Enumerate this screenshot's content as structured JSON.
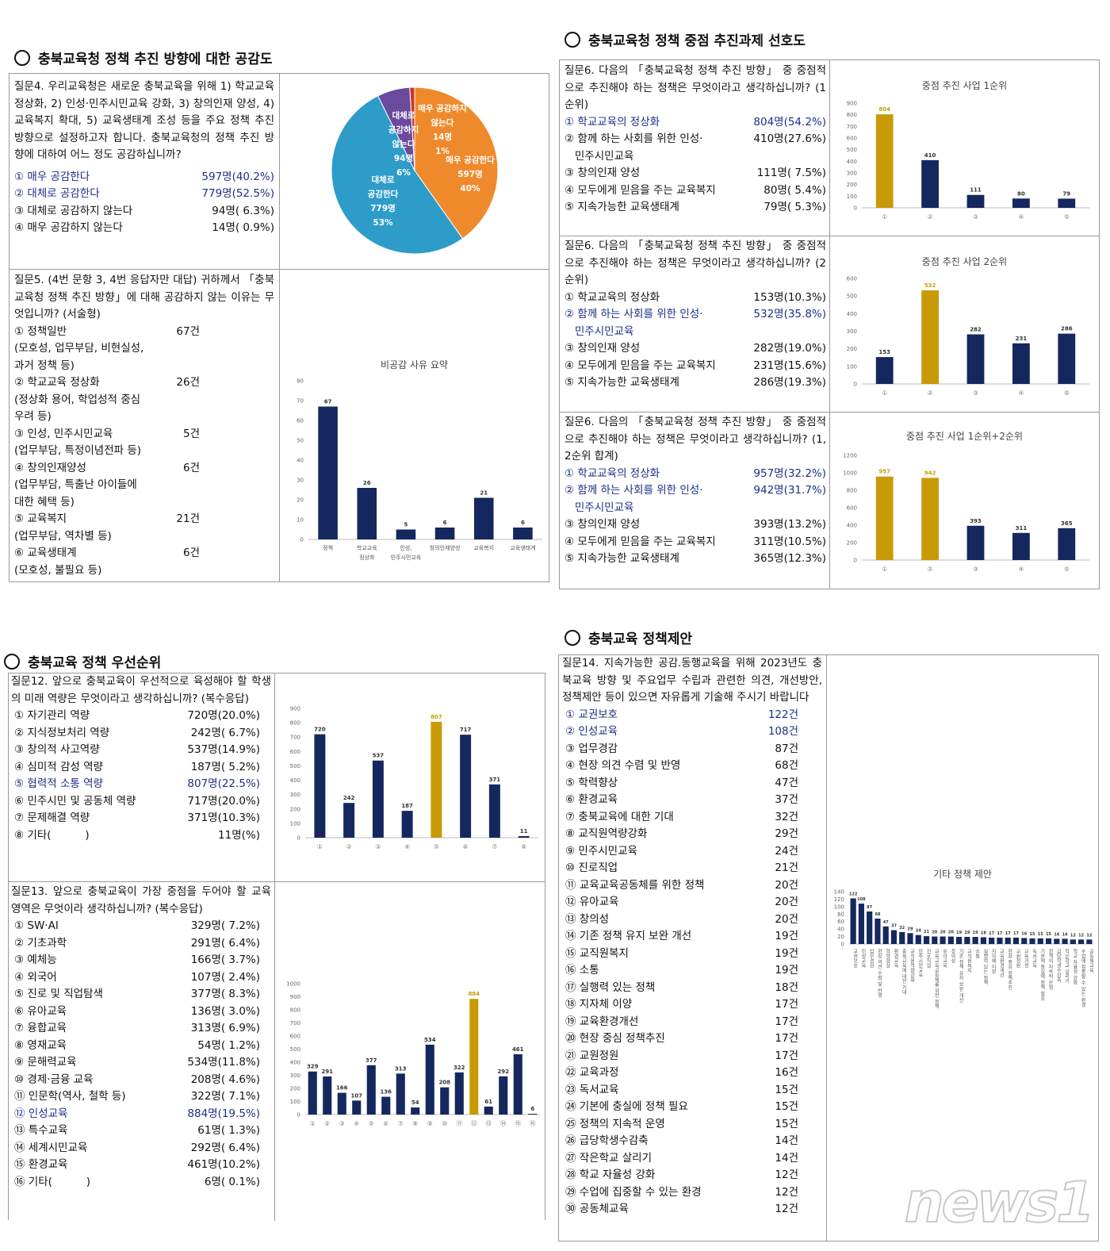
{
  "s1": {
    "title": "충북교육청 정책 추진 방향에 대한 공감도",
    "q4": "질문4. 우리교육청은 새로운 충북교육을 위해 1) 학교교육 정상화, 2) 인성·민주시민교육 강화, 3) 창의인재 양성, 4) 교육복지 확대, 5) 교육생태계 조성 등을 주요 정책 추진 방향으로 설정하고자 합니다. 충북교육청의 정책 추진 방향에 대하여 어느 정도 공감하십니까?",
    "q4_options": [
      {
        "label": "① 매우 공감한다",
        "value": "597명(40.2%)",
        "hl": true
      },
      {
        "label": "② 대체로 공감한다",
        "value": "779명(52.5%)",
        "hl": true
      },
      {
        "label": "③ 대체로 공감하지 않는다",
        "value": "94명( 6.3%)",
        "hl": false
      },
      {
        "label": "④ 매우 공감하지 않는다",
        "value": "14명( 0.9%)",
        "hl": false
      }
    ],
    "pie": {
      "slices": [
        {
          "label": "매우 공감한다",
          "count": "597명",
          "pct": "40%",
          "value": 597,
          "color": "#ef8a2c"
        },
        {
          "label": "대체로 공감한다",
          "count": "779명",
          "pct": "53%",
          "value": 779,
          "color": "#2e9cc9"
        },
        {
          "label": "대체로 공감하지 않는다",
          "count": "94명",
          "pct": "6%",
          "value": 94,
          "color": "#6a4a9c"
        },
        {
          "label": "매우 공감하지 않는다",
          "count": "14명",
          "pct": "1%",
          "value": 14,
          "color": "#c9382b"
        }
      ],
      "l_strongly_disagree": [
        "매우 공감하지",
        "않는다",
        "14명",
        "1%"
      ],
      "l_strongly_agree": [
        "매우 공감한다",
        "597명",
        "40%"
      ],
      "l_disagree": [
        "대체로",
        "공감하지",
        "않는다",
        "94명",
        "6%"
      ],
      "l_agree": [
        "대체로",
        "공감한다",
        "779명",
        "53%"
      ]
    },
    "q5": "질문5. (4번 문항 3, 4번 응답자만 대답) 귀하께서 「충북교육청 정책 추진 방향」에 대해 공감하지 않는 이유는 무엇입니까? (서술형)",
    "q5_items": [
      {
        "label": "① 정책일반",
        "value": "67건",
        "sub": [
          "(모호성, 업무부담, 비현실성,",
          "과거 정책 등)"
        ]
      },
      {
        "label": "② 학교교육 정상화",
        "value": "26건",
        "sub": [
          "(정상화 용어, 학업성적 중심",
          "우려 등)"
        ]
      },
      {
        "label": "③ 인성, 민주시민교육",
        "value": "5건",
        "sub": [
          "(업무부담, 특정이념전파 등)"
        ]
      },
      {
        "label": "④ 창의인재양성",
        "value": "6건",
        "sub": [
          "(업무부담, 특출난 아이들에",
          "대한 혜택 등)"
        ]
      },
      {
        "label": "⑤ 교육복지",
        "value": "21건",
        "sub": [
          "(업무부담, 역차별 등)"
        ]
      },
      {
        "label": "⑥ 교육생태계",
        "value": "6건",
        "sub": [
          "(모호성, 불필요 등)"
        ]
      }
    ]
  },
  "s2": {
    "title": "충북교육청 정책 중점 추진과제 선호도",
    "blocks": [
      {
        "q": "질문6. 다음의 「충북교육청 정책 추진 방향」 중 중점적으로 추진해야 하는 정책은 무엇이라고 생각하십니까? (1순위)",
        "options": [
          {
            "label": "① 학교교육의 정상화",
            "value": "804명(54.2%)",
            "hl": true
          },
          {
            "label": "② 함께 하는 사회를 위한 인성·",
            "value": "410명(27.6%)",
            "hl": false
          },
          {
            "label": "   민주시민교육",
            "value": "",
            "hl": false
          },
          {
            "label": "③ 창의인재 양성",
            "value": "111명( 7.5%)",
            "hl": false
          },
          {
            "label": "④ 모두에게 믿음을 주는 교육복지",
            "value": "80명( 5.4%)",
            "hl": false
          },
          {
            "label": "⑤ 지속가능한 교육생태계",
            "value": "79명( 5.3%)",
            "hl": false
          }
        ]
      },
      {
        "q": "질문6. 다음의 「충북교육청 정책 추진 방향」 중 중점적으로 추진해야 하는 정책은 무엇이라고 생각하십니까? (2순위)",
        "options": [
          {
            "label": "① 학교교육의 정상화",
            "value": "153명(10.3%)",
            "hl": false
          },
          {
            "label": "② 함께 하는 사회를 위한 인성·",
            "value": "532명(35.8%)",
            "hl": true
          },
          {
            "label": "   민주시민교육",
            "value": "",
            "hl": true
          },
          {
            "label": "③ 창의인재 양성",
            "value": "282명(19.0%)",
            "hl": false
          },
          {
            "label": "④ 모두에게 믿음을 주는 교육복지",
            "value": "231명(15.6%)",
            "hl": false
          },
          {
            "label": "⑤ 지속가능한 교육생태계",
            "value": "286명(19.3%)",
            "hl": false
          }
        ]
      },
      {
        "q": "질문6. 다음의 「충북교육청 정책 추진 방향」 중 중점적으로 추진해야 하는 정책은 무엇이라고 생각하십니까? (1, 2순위 합계)",
        "options": [
          {
            "label": "① 학교교육의 정상화",
            "value": "957명(32.2%)",
            "hl": true
          },
          {
            "label": "② 함께 하는 사회를 위한 인성·",
            "value": "942명(31.7%)",
            "hl": true
          },
          {
            "label": "   민주시민교육",
            "value": "",
            "hl": true
          },
          {
            "label": "③ 창의인재 양성",
            "value": "393명(13.2%)",
            "hl": false
          },
          {
            "label": "④ 모두에게 믿음을 주는 교육복지",
            "value": "311명(10.5%)",
            "hl": false
          },
          {
            "label": "⑤ 지속가능한 교육생태계",
            "value": "365명(12.3%)",
            "hl": false
          }
        ]
      }
    ]
  },
  "s3": {
    "title": "충북교육 정책 우선순위",
    "q12": "질문12. 앞으로 충북교육이 우선적으로 육성해야 할 학생의 미래 역량은 무엇이라고 생각하십니까? (복수응답)",
    "q12_options": [
      {
        "label": "① 자기관리 역량",
        "value": "720명(20.0%)",
        "hl": false
      },
      {
        "label": "② 지식정보처리 역량",
        "value": "242명( 6.7%)",
        "hl": false
      },
      {
        "label": "③ 창의적 사고역량",
        "value": "537명(14.9%)",
        "hl": false
      },
      {
        "label": "④ 심미적 감성 역량",
        "value": "187명( 5.2%)",
        "hl": false
      },
      {
        "label": "⑤ 협력적 소통 역량",
        "value": "807명(22.5%)",
        "hl": true
      },
      {
        "label": "⑥ 민주시민 및 공동체 역량",
        "value": "717명(20.0%)",
        "hl": false
      },
      {
        "label": "⑦ 문제해결 역량",
        "value": "371명(10.3%)",
        "hl": false
      },
      {
        "label": "⑧ 기타(          )",
        "value": "11명(%)",
        "hl": false
      }
    ],
    "q13": "질문13. 앞으로 충북교육이 가장 중점을 두어야 할 교육 영역은 무엇이라 생각하십니까? (복수응답)",
    "q13_options": [
      {
        "label": "① SW·AI",
        "value": "329명( 7.2%)",
        "hl": false
      },
      {
        "label": "② 기초과학",
        "value": "291명( 6.4%)",
        "hl": false
      },
      {
        "label": "③ 예체능",
        "value": "166명( 3.7%)",
        "hl": false
      },
      {
        "label": "④ 외국어",
        "value": "107명( 2.4%)",
        "hl": false
      },
      {
        "label": "⑤ 진로 및 직업탐색",
        "value": "377명( 8.3%)",
        "hl": false
      },
      {
        "label": "⑥ 유아교육",
        "value": "136명( 3.0%)",
        "hl": false
      },
      {
        "label": "⑦ 융합교육",
        "value": "313명( 6.9%)",
        "hl": false
      },
      {
        "label": "⑧ 영재교육",
        "value": "54명( 1.2%)",
        "hl": false
      },
      {
        "label": "⑨ 문해력교육",
        "value": "534명(11.8%)",
        "hl": false
      },
      {
        "label": "⑩ 경제·금융 교육",
        "value": "208명( 4.6%)",
        "hl": false
      },
      {
        "label": "⑪ 인문학(역사, 철학 등)",
        "value": "322명( 7.1%)",
        "hl": false
      },
      {
        "label": "⑫ 인성교육",
        "value": "884명(19.5%)",
        "hl": true
      },
      {
        "label": "⑬ 특수교육",
        "value": "61명( 1.3%)",
        "hl": false
      },
      {
        "label": "⑭ 세계시민교육",
        "value": "292명( 6.4%)",
        "hl": false
      },
      {
        "label": "⑮ 환경교육",
        "value": "461명(10.2%)",
        "hl": false
      },
      {
        "label": "⑯ 기타(          )",
        "value": "6명( 0.1%)",
        "hl": false
      }
    ]
  },
  "s4": {
    "title": "충북교육 정책제안",
    "q14": "질문14. 지속가능한 공감.동행교육을 위해 2023년도 충북교육 방향 및 주요업무 수립과 관련한 의견, 개선방안, 정책제안 등이 있으면 자유롭게 기술해 주시기 바랍니다",
    "q14_options": [
      {
        "label": "① 교권보호",
        "value": "122건",
        "hl": true
      },
      {
        "label": "② 인성교육",
        "value": "108건",
        "hl": true
      },
      {
        "label": "③ 업무경감",
        "value": "87건",
        "hl": false
      },
      {
        "label": "④ 현장 의견 수렴 및 반영",
        "value": "68건",
        "hl": false
      },
      {
        "label": "⑤ 학력향상",
        "value": "47건",
        "hl": false
      },
      {
        "label": "⑥ 환경교육",
        "value": "37건",
        "hl": false
      },
      {
        "label": "⑦ 충북교육에 대한 기대",
        "value": "32건",
        "hl": false
      },
      {
        "label": "⑧ 교직원역량강화",
        "value": "29건",
        "hl": false
      },
      {
        "label": "⑨ 민주시민교육",
        "value": "24건",
        "hl": false
      },
      {
        "label": "⑩ 진로직업",
        "value": "21건",
        "hl": false
      },
      {
        "label": "⑪ 교육교육공동체를 위한 정책",
        "value": "20건",
        "hl": false
      },
      {
        "label": "⑫ 유아교육",
        "value": "20건",
        "hl": false
      },
      {
        "label": "⑬ 창의성",
        "value": "20건",
        "hl": false
      },
      {
        "label": "⑭ 기존 정책 유지 보완 개선",
        "value": "19건",
        "hl": false
      },
      {
        "label": "⑮ 교직원복지",
        "value": "19건",
        "hl": false
      },
      {
        "label": "⑯ 소통",
        "value": "19건",
        "hl": false
      },
      {
        "label": "⑰ 실행력 있는 정책",
        "value": "18건",
        "hl": false
      },
      {
        "label": "⑱ 지자체 이양",
        "value": "17건",
        "hl": false
      },
      {
        "label": "⑲ 교육환경개선",
        "value": "17건",
        "hl": false
      },
      {
        "label": "⑳ 현장 중심 정책추진",
        "value": "17건",
        "hl": false
      },
      {
        "label": "㉑ 교원정원",
        "value": "17건",
        "hl": false
      },
      {
        "label": "㉒ 교육과정",
        "value": "16건",
        "hl": false
      },
      {
        "label": "㉓ 독서교육",
        "value": "15건",
        "hl": false
      },
      {
        "label": "㉔ 기본에 충실에 정책 필요",
        "value": "15건",
        "hl": false
      },
      {
        "label": "㉕ 정책의 지속적 운영",
        "value": "15건",
        "hl": false
      },
      {
        "label": "㉖ 급당학생수감축",
        "value": "14건",
        "hl": false
      },
      {
        "label": "㉗ 작은학교 살리기",
        "value": "14건",
        "hl": false
      },
      {
        "label": "㉘ 학교 자율성 강화",
        "value": "12건",
        "hl": false
      },
      {
        "label": "㉙ 수업에 집중할 수 있는 환경",
        "value": "12건",
        "hl": false
      },
      {
        "label": "㉚ 공동체교육",
        "value": "12건",
        "hl": false
      }
    ]
  },
  "colors": {
    "navy": "#14285f",
    "gold": "#c99a07",
    "highlight_text": "#1b2f86"
  },
  "watermark": "news1",
  "chart_data": [
    {
      "id": "c_pie",
      "type": "pie",
      "categories": [
        "매우 공감한다",
        "대체로 공감한다",
        "대체로 공감하지 않는다",
        "매우 공감하지 않는다"
      ],
      "values": [
        597,
        779,
        94,
        14
      ]
    },
    {
      "id": "c_q5",
      "type": "bar",
      "title": "비공감 사유 요약",
      "categories": [
        "정책",
        "학교교육 정상화",
        "인성, 민주시민교육",
        "창의인재양성",
        "교육복지",
        "교육생태계"
      ],
      "values": [
        67,
        26,
        5,
        6,
        21,
        6
      ],
      "ylim": [
        0,
        80
      ],
      "yticks": [
        0,
        10,
        20,
        30,
        40,
        50,
        60,
        70,
        80
      ],
      "highlight": []
    },
    {
      "id": "c_r1",
      "type": "bar",
      "title": "중점 추진 사업 1순위",
      "categories": [
        "①",
        "②",
        "③",
        "④",
        "⑤"
      ],
      "values": [
        804,
        410,
        111,
        80,
        79
      ],
      "ylim": [
        0,
        900
      ],
      "yticks": [
        0,
        100,
        200,
        300,
        400,
        500,
        600,
        700,
        800,
        900
      ],
      "highlight": [
        0
      ]
    },
    {
      "id": "c_r2",
      "type": "bar",
      "title": "중점 추진 사업 2순위",
      "categories": [
        "①",
        "②",
        "③",
        "④",
        "⑤"
      ],
      "values": [
        153,
        532,
        282,
        231,
        286
      ],
      "ylim": [
        0,
        600
      ],
      "yticks": [
        0,
        100,
        200,
        300,
        400,
        500,
        600
      ],
      "highlight": [
        1
      ]
    },
    {
      "id": "c_r12",
      "type": "bar",
      "title": "중점 추진 사업 1순위+2순위",
      "categories": [
        "①",
        "②",
        "③",
        "④",
        "⑤"
      ],
      "values": [
        957,
        942,
        393,
        311,
        365
      ],
      "ylim": [
        0,
        1200
      ],
      "yticks": [
        0,
        200,
        400,
        600,
        800,
        1000,
        1200
      ],
      "highlight": [
        0,
        1
      ]
    },
    {
      "id": "c_q12",
      "type": "bar",
      "title": "",
      "categories": [
        "①",
        "②",
        "③",
        "④",
        "⑤",
        "⑥",
        "⑦",
        "⑧"
      ],
      "values": [
        720,
        242,
        537,
        187,
        807,
        717,
        371,
        11
      ],
      "ylim": [
        0,
        900
      ],
      "yticks": [
        0,
        100,
        200,
        300,
        400,
        500,
        600,
        700,
        800,
        900
      ],
      "highlight": [
        4
      ]
    },
    {
      "id": "c_q13",
      "type": "bar",
      "title": "",
      "categories": [
        "①",
        "②",
        "③",
        "④",
        "⑤",
        "⑥",
        "⑦",
        "⑧",
        "⑨",
        "⑩",
        "⑪",
        "⑫",
        "⑬",
        "⑭",
        "⑮",
        "⑯"
      ],
      "values": [
        329,
        291,
        166,
        107,
        377,
        136,
        313,
        54,
        534,
        208,
        322,
        884,
        61,
        292,
        461,
        6
      ],
      "ylim": [
        0,
        1000
      ],
      "yticks": [
        0,
        100,
        200,
        300,
        400,
        500,
        600,
        700,
        800,
        900,
        1000
      ],
      "highlight": [
        11
      ]
    },
    {
      "id": "c_q14",
      "type": "bar",
      "title": "기타 정책 제안",
      "categories": [
        "교권보호",
        "인성교육",
        "업무경감",
        "현장 의견 수렴 및 반영",
        "학력향상",
        "환경교육",
        "충북교육에 대한 기대",
        "교직원역량강화",
        "민주시민교육",
        "진로직업",
        "교육교육공동체를 위한 정책",
        "유아교육",
        "창의성",
        "기존 정책 유지 보완 개선",
        "교직원복지",
        "소통",
        "실행력 있는 정책",
        "지자체 이양",
        "교육환경개선",
        "현장 중심 정책추진",
        "교원정원",
        "교육과정",
        "독서교육",
        "기본에 충실에 정책 필요",
        "정책의 지속적 운영",
        "급당학생수감축",
        "작은학교 살리기",
        "학교 자율성 강화",
        "수업에 집중할 수 있는 환경",
        "공동체교육"
      ],
      "values": [
        122,
        108,
        87,
        68,
        47,
        37,
        32,
        29,
        24,
        21,
        20,
        20,
        20,
        19,
        19,
        19,
        18,
        17,
        17,
        17,
        17,
        16,
        15,
        15,
        15,
        14,
        14,
        12,
        12,
        12
      ],
      "ylim": [
        0,
        140
      ],
      "yticks": [
        0,
        20,
        40,
        60,
        80,
        100,
        120,
        140
      ],
      "highlight": []
    }
  ]
}
